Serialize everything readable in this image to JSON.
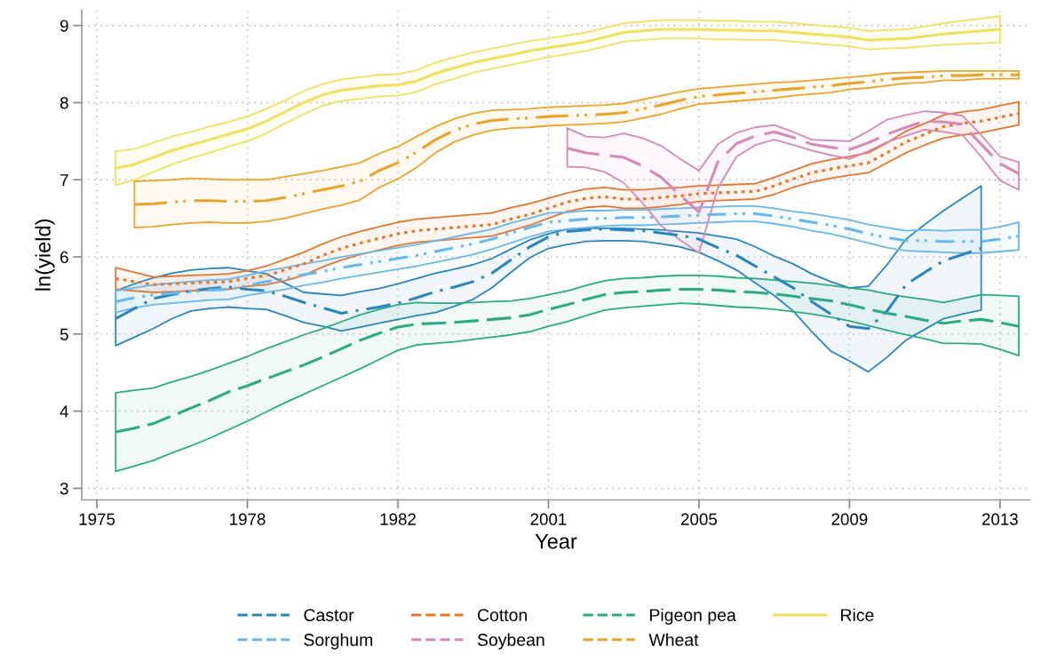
{
  "chart_data": {
    "type": "line",
    "xlabel": "Year",
    "ylabel": "ln(yield)",
    "categories": [
      "1975",
      null,
      null,
      null,
      null,
      null,
      null,
      null,
      "1978",
      null,
      null,
      null,
      null,
      null,
      null,
      null,
      "1982",
      null,
      null,
      null,
      null,
      null,
      null,
      null,
      "2001",
      null,
      null,
      null,
      null,
      null,
      null,
      null,
      "2005",
      null,
      null,
      null,
      null,
      null,
      null,
      null,
      "2009",
      null,
      null,
      null,
      null,
      null,
      null,
      null,
      "2013",
      null
    ],
    "ylim": [
      2.85,
      9.2
    ],
    "yticks": [
      3,
      4,
      5,
      6,
      7,
      8,
      9
    ],
    "grid": true,
    "legend": "bottom",
    "series": [
      {
        "name": "Castor",
        "color": "#2a84bd",
        "line_style": "dashdot",
        "values": [
          null,
          5.2,
          5.33,
          5.46,
          5.51,
          5.56,
          5.59,
          5.61,
          5.58,
          5.56,
          5.49,
          5.41,
          5.34,
          5.27,
          5.31,
          5.35,
          5.4,
          5.47,
          5.55,
          5.61,
          5.68,
          5.79,
          5.96,
          6.13,
          6.26,
          6.33,
          6.35,
          6.36,
          6.35,
          6.34,
          6.31,
          6.28,
          6.23,
          6.12,
          6.02,
          5.88,
          5.74,
          5.6,
          5.42,
          5.26,
          5.1,
          5.07,
          5.3,
          5.64,
          5.8,
          5.95,
          6.03,
          6.11,
          null,
          null
        ],
        "lower": [
          null,
          4.85,
          4.96,
          5.07,
          5.2,
          5.3,
          5.33,
          5.35,
          5.33,
          5.32,
          5.24,
          5.15,
          5.1,
          5.04,
          5.09,
          5.14,
          5.19,
          5.24,
          5.28,
          5.36,
          5.45,
          5.6,
          5.8,
          5.99,
          6.11,
          6.16,
          6.2,
          6.21,
          6.21,
          6.2,
          6.17,
          6.13,
          6.06,
          5.95,
          5.83,
          5.66,
          5.5,
          5.3,
          5.03,
          4.78,
          4.65,
          4.51,
          4.7,
          4.92,
          5.06,
          5.2,
          5.26,
          5.31,
          null,
          null
        ],
        "upper": [
          null,
          5.56,
          5.65,
          5.73,
          5.79,
          5.83,
          5.85,
          5.86,
          5.82,
          5.78,
          5.66,
          5.54,
          5.52,
          5.5,
          5.55,
          5.59,
          5.65,
          5.72,
          5.79,
          5.84,
          5.9,
          5.98,
          6.1,
          6.22,
          6.3,
          6.36,
          6.37,
          6.37,
          6.37,
          6.36,
          6.35,
          6.33,
          6.31,
          6.27,
          6.23,
          6.13,
          6.01,
          5.91,
          5.78,
          5.68,
          5.6,
          5.62,
          5.9,
          6.23,
          6.42,
          6.6,
          6.76,
          6.92,
          null,
          null
        ]
      },
      {
        "name": "Cotton",
        "color": "#e5762e",
        "line_style": "dotted",
        "values": [
          null,
          5.72,
          5.68,
          5.64,
          5.65,
          5.66,
          5.67,
          5.68,
          5.72,
          5.76,
          5.83,
          5.91,
          6.02,
          6.11,
          6.18,
          6.24,
          6.3,
          6.34,
          6.36,
          6.38,
          6.4,
          6.42,
          6.49,
          6.55,
          6.63,
          6.71,
          6.76,
          6.78,
          6.75,
          6.75,
          6.77,
          6.79,
          6.82,
          6.83,
          6.84,
          6.85,
          6.92,
          7.01,
          7.09,
          7.14,
          7.18,
          7.22,
          7.35,
          7.49,
          7.59,
          7.69,
          7.73,
          7.76,
          7.81,
          7.86
        ],
        "lower": [
          null,
          5.58,
          5.56,
          5.54,
          5.55,
          5.56,
          5.57,
          5.58,
          5.62,
          5.64,
          5.69,
          5.76,
          5.87,
          5.96,
          6.03,
          6.09,
          6.15,
          6.19,
          6.21,
          6.23,
          6.25,
          6.27,
          6.34,
          6.41,
          6.5,
          6.59,
          6.64,
          6.66,
          6.63,
          6.63,
          6.65,
          6.68,
          6.72,
          6.73,
          6.74,
          6.75,
          6.81,
          6.9,
          6.97,
          7.02,
          7.06,
          7.09,
          7.22,
          7.35,
          7.45,
          7.54,
          7.58,
          7.61,
          7.66,
          7.71
        ],
        "upper": [
          null,
          5.86,
          5.8,
          5.74,
          5.75,
          5.76,
          5.77,
          5.78,
          5.82,
          5.88,
          5.97,
          6.06,
          6.17,
          6.26,
          6.33,
          6.39,
          6.45,
          6.49,
          6.51,
          6.53,
          6.55,
          6.57,
          6.64,
          6.69,
          6.76,
          6.83,
          6.88,
          6.9,
          6.87,
          6.87,
          6.89,
          6.9,
          6.92,
          6.93,
          6.94,
          6.95,
          7.03,
          7.12,
          7.21,
          7.26,
          7.3,
          7.35,
          7.48,
          7.63,
          7.73,
          7.84,
          7.88,
          7.91,
          7.96,
          8.01
        ]
      },
      {
        "name": "Pigeon pea",
        "color": "#2aab82",
        "line_style": "dashed",
        "values": [
          null,
          3.73,
          3.78,
          3.84,
          3.94,
          4.04,
          4.14,
          4.25,
          4.33,
          4.42,
          4.51,
          4.6,
          4.7,
          4.81,
          4.92,
          5.01,
          5.09,
          5.13,
          5.14,
          5.15,
          5.17,
          5.19,
          5.21,
          5.25,
          5.32,
          5.38,
          5.45,
          5.51,
          5.54,
          5.55,
          5.57,
          5.58,
          5.58,
          5.57,
          5.55,
          5.54,
          5.52,
          5.49,
          5.46,
          5.43,
          5.38,
          5.32,
          5.27,
          5.23,
          5.18,
          5.14,
          5.17,
          5.19,
          5.15,
          5.1
        ],
        "lower": [
          null,
          3.22,
          3.29,
          3.36,
          3.46,
          3.55,
          3.65,
          3.76,
          3.87,
          3.99,
          4.11,
          4.22,
          4.33,
          4.44,
          4.55,
          4.67,
          4.79,
          4.86,
          4.88,
          4.9,
          4.93,
          4.96,
          4.99,
          5.03,
          5.1,
          5.16,
          5.24,
          5.31,
          5.34,
          5.36,
          5.38,
          5.4,
          5.39,
          5.37,
          5.35,
          5.34,
          5.32,
          5.29,
          5.26,
          5.22,
          5.17,
          5.11,
          5.05,
          4.99,
          4.94,
          4.88,
          4.88,
          4.87,
          4.8,
          4.72
        ],
        "upper": [
          null,
          4.24,
          4.27,
          4.3,
          4.38,
          4.45,
          4.53,
          4.62,
          4.71,
          4.81,
          4.9,
          4.99,
          5.07,
          5.16,
          5.25,
          5.32,
          5.38,
          5.41,
          5.4,
          5.4,
          5.41,
          5.42,
          5.43,
          5.46,
          5.51,
          5.56,
          5.63,
          5.69,
          5.72,
          5.73,
          5.75,
          5.76,
          5.76,
          5.75,
          5.73,
          5.72,
          5.7,
          5.68,
          5.66,
          5.63,
          5.6,
          5.57,
          5.52,
          5.48,
          5.45,
          5.41,
          5.46,
          5.51,
          5.5,
          5.49
        ]
      },
      {
        "name": "Rice",
        "color": "#f0e060",
        "line_style": "solid",
        "values": [
          null,
          7.15,
          7.2,
          7.29,
          7.38,
          7.45,
          7.52,
          7.59,
          7.66,
          7.76,
          7.88,
          8.0,
          8.1,
          8.16,
          8.19,
          8.22,
          8.23,
          8.28,
          8.38,
          8.45,
          8.52,
          8.57,
          8.62,
          8.67,
          8.71,
          8.75,
          8.79,
          8.85,
          8.91,
          8.93,
          8.95,
          8.95,
          8.95,
          8.94,
          8.94,
          8.93,
          8.93,
          8.91,
          8.89,
          8.87,
          8.85,
          8.81,
          8.82,
          8.83,
          8.86,
          8.89,
          8.91,
          8.93,
          8.95,
          null
        ],
        "lower": [
          null,
          6.93,
          7.0,
          7.1,
          7.2,
          7.28,
          7.35,
          7.43,
          7.5,
          7.6,
          7.73,
          7.85,
          7.96,
          8.02,
          8.05,
          8.08,
          8.09,
          8.14,
          8.24,
          8.31,
          8.39,
          8.44,
          8.49,
          8.54,
          8.59,
          8.63,
          8.67,
          8.73,
          8.79,
          8.81,
          8.83,
          8.83,
          8.83,
          8.82,
          8.82,
          8.81,
          8.81,
          8.79,
          8.77,
          8.75,
          8.73,
          8.69,
          8.7,
          8.71,
          8.73,
          8.75,
          8.76,
          8.77,
          8.78,
          null
        ],
        "upper": [
          null,
          7.37,
          7.4,
          7.48,
          7.56,
          7.62,
          7.69,
          7.75,
          7.82,
          7.92,
          8.03,
          8.15,
          8.24,
          8.3,
          8.33,
          8.36,
          8.37,
          8.42,
          8.52,
          8.59,
          8.65,
          8.7,
          8.75,
          8.8,
          8.83,
          8.87,
          8.91,
          8.97,
          9.03,
          9.05,
          9.07,
          9.07,
          9.07,
          9.06,
          9.06,
          9.05,
          9.05,
          9.03,
          9.01,
          8.99,
          8.97,
          8.93,
          8.94,
          8.95,
          8.99,
          9.03,
          9.06,
          9.09,
          9.12,
          null
        ]
      },
      {
        "name": "Sorghum",
        "color": "#6ab8e8",
        "line_style": "dashdotdot",
        "values": [
          null,
          5.42,
          5.47,
          5.51,
          5.53,
          5.55,
          5.57,
          5.58,
          5.63,
          5.68,
          5.72,
          5.77,
          5.81,
          5.86,
          5.9,
          5.94,
          5.98,
          6.02,
          6.07,
          6.12,
          6.17,
          6.23,
          6.31,
          6.38,
          6.45,
          6.47,
          6.49,
          6.5,
          6.51,
          6.51,
          6.52,
          6.53,
          6.54,
          6.55,
          6.56,
          6.56,
          6.53,
          6.49,
          6.45,
          6.41,
          6.36,
          6.3,
          6.25,
          6.21,
          6.21,
          6.2,
          6.2,
          6.2,
          6.23,
          6.27
        ],
        "lower": [
          null,
          5.28,
          5.34,
          5.38,
          5.4,
          5.42,
          5.44,
          5.45,
          5.5,
          5.54,
          5.58,
          5.63,
          5.67,
          5.72,
          5.76,
          5.8,
          5.84,
          5.88,
          5.93,
          5.98,
          6.03,
          6.1,
          6.18,
          6.26,
          6.33,
          6.36,
          6.38,
          6.4,
          6.41,
          6.41,
          6.42,
          6.43,
          6.44,
          6.45,
          6.46,
          6.46,
          6.43,
          6.39,
          6.34,
          6.3,
          6.24,
          6.18,
          6.12,
          6.08,
          6.07,
          6.06,
          6.05,
          6.05,
          6.07,
          6.09
        ],
        "upper": [
          null,
          5.56,
          5.6,
          5.64,
          5.66,
          5.68,
          5.7,
          5.71,
          5.76,
          5.82,
          5.86,
          5.91,
          5.95,
          6.0,
          6.04,
          6.08,
          6.12,
          6.16,
          6.21,
          6.26,
          6.31,
          6.36,
          6.44,
          6.5,
          6.57,
          6.58,
          6.6,
          6.6,
          6.61,
          6.61,
          6.62,
          6.63,
          6.64,
          6.65,
          6.66,
          6.66,
          6.63,
          6.59,
          6.56,
          6.52,
          6.48,
          6.42,
          6.38,
          6.34,
          6.35,
          6.34,
          6.35,
          6.35,
          6.39,
          6.45
        ]
      },
      {
        "name": "Soybean",
        "color": "#d58ab8",
        "line_style": "longdash",
        "values": [
          null,
          null,
          null,
          null,
          null,
          null,
          null,
          null,
          null,
          null,
          null,
          null,
          null,
          null,
          null,
          null,
          null,
          null,
          null,
          null,
          null,
          null,
          null,
          null,
          null,
          7.41,
          7.35,
          7.32,
          7.29,
          7.18,
          7.03,
          6.8,
          6.58,
          7.23,
          7.47,
          7.57,
          7.62,
          7.55,
          7.46,
          7.42,
          7.39,
          7.48,
          7.59,
          7.68,
          7.76,
          7.75,
          7.72,
          7.46,
          7.21,
          7.08
        ],
        "lower": [
          null,
          null,
          null,
          null,
          null,
          null,
          null,
          null,
          null,
          null,
          null,
          null,
          null,
          null,
          null,
          null,
          null,
          null,
          null,
          null,
          null,
          null,
          null,
          null,
          null,
          7.17,
          7.16,
          7.1,
          6.96,
          6.7,
          6.4,
          6.22,
          6.05,
          6.89,
          7.3,
          7.45,
          7.52,
          7.45,
          7.38,
          7.32,
          7.27,
          7.37,
          7.49,
          7.57,
          7.65,
          7.62,
          7.58,
          7.3,
          6.99,
          6.87
        ],
        "upper": [
          null,
          null,
          null,
          null,
          null,
          null,
          null,
          null,
          null,
          null,
          null,
          null,
          null,
          null,
          null,
          null,
          null,
          null,
          null,
          null,
          null,
          null,
          null,
          null,
          null,
          7.67,
          7.56,
          7.55,
          7.6,
          7.54,
          7.44,
          7.27,
          7.12,
          7.46,
          7.61,
          7.68,
          7.71,
          7.62,
          7.52,
          7.51,
          7.5,
          7.63,
          7.78,
          7.84,
          7.89,
          7.87,
          7.83,
          7.58,
          7.3,
          7.23
        ]
      },
      {
        "name": "Wheat",
        "color": "#e8a52a",
        "line_style": "longdashdotdot",
        "values": [
          null,
          null,
          6.68,
          6.69,
          6.71,
          6.73,
          6.73,
          6.72,
          6.72,
          6.73,
          6.77,
          6.82,
          6.87,
          6.92,
          6.98,
          7.12,
          7.22,
          7.36,
          7.52,
          7.64,
          7.72,
          7.77,
          7.79,
          7.8,
          7.82,
          7.83,
          7.84,
          7.85,
          7.87,
          7.92,
          7.97,
          8.03,
          8.08,
          8.1,
          8.12,
          8.14,
          8.16,
          8.18,
          8.2,
          8.22,
          8.25,
          8.27,
          8.3,
          8.32,
          8.33,
          8.35,
          8.35,
          8.36,
          8.36,
          8.36
        ],
        "lower": [
          null,
          null,
          6.38,
          6.39,
          6.42,
          6.44,
          6.45,
          6.44,
          6.44,
          6.46,
          6.5,
          6.56,
          6.62,
          6.67,
          6.74,
          6.9,
          7.01,
          7.16,
          7.35,
          7.49,
          7.58,
          7.64,
          7.67,
          7.68,
          7.7,
          7.71,
          7.72,
          7.73,
          7.75,
          7.8,
          7.85,
          7.92,
          7.98,
          8.0,
          8.02,
          8.04,
          8.06,
          8.09,
          8.11,
          8.13,
          8.17,
          8.19,
          8.22,
          8.25,
          8.26,
          8.29,
          8.29,
          8.31,
          8.31,
          8.31
        ],
        "upper": [
          null,
          null,
          6.98,
          6.99,
          7.0,
          7.02,
          7.01,
          7.0,
          7.0,
          7.0,
          7.04,
          7.08,
          7.12,
          7.17,
          7.22,
          7.34,
          7.43,
          7.56,
          7.69,
          7.79,
          7.86,
          7.9,
          7.91,
          7.92,
          7.94,
          7.95,
          7.96,
          7.97,
          7.99,
          8.04,
          8.09,
          8.14,
          8.18,
          8.2,
          8.22,
          8.24,
          8.26,
          8.27,
          8.29,
          8.31,
          8.33,
          8.35,
          8.38,
          8.39,
          8.4,
          8.41,
          8.41,
          8.41,
          8.41,
          8.41
        ]
      }
    ]
  }
}
